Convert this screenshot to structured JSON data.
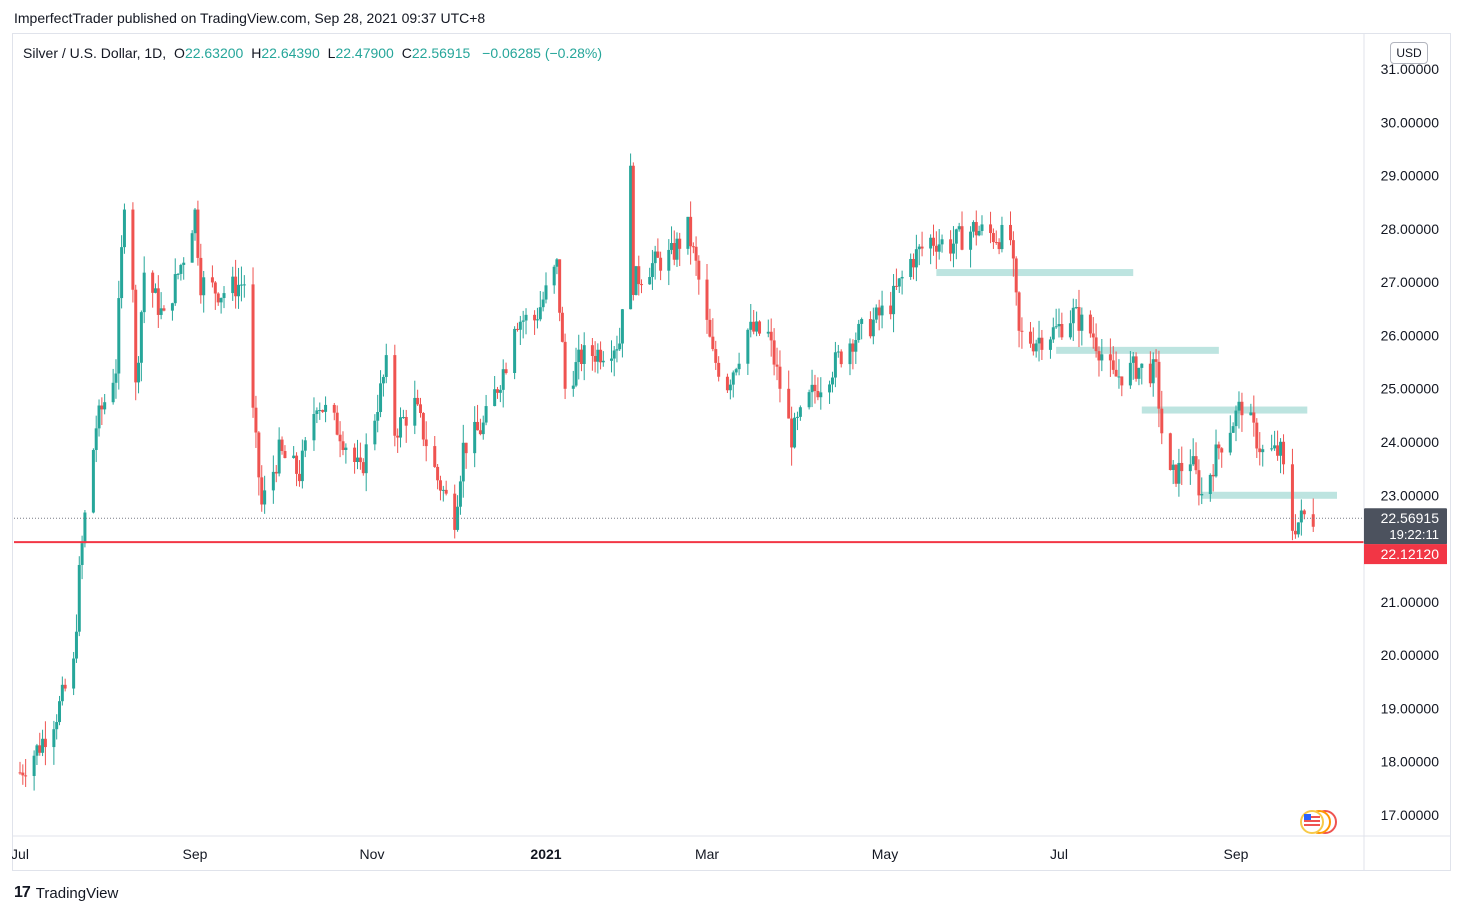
{
  "header": {
    "published_by": "ImperfectTrader published on TradingView.com, Sep 28, 2021 09:37 UTC+8"
  },
  "legend": {
    "symbol": "Silver / U.S. Dollar, 1D,",
    "open_label": "O",
    "open": "22.63200",
    "high_label": "H",
    "high": "22.64390",
    "low_label": "L",
    "low": "22.47900",
    "close_label": "C",
    "close": "22.56915",
    "change": "−0.06285 (−0.28%)"
  },
  "currency": "USD",
  "footer": {
    "brand": "TradingView",
    "logo_text": "17"
  },
  "colors": {
    "up": "#26a69a",
    "down": "#ef5350",
    "support_line": "#f23645",
    "zone": "#b2dfdb",
    "price_tag": "#4c525e",
    "grid_text": "#131722"
  },
  "chart_data": {
    "type": "candlestick",
    "title": "Silver / U.S. Dollar, 1D",
    "x_ticks": [
      "Jul",
      "Sep",
      "Nov",
      "2021",
      "Mar",
      "May",
      "Jul",
      "Sep"
    ],
    "y_ticks": [
      "31.00000",
      "30.00000",
      "29.00000",
      "28.00000",
      "27.00000",
      "26.00000",
      "25.00000",
      "24.00000",
      "23.00000",
      "21.00000",
      "20.00000",
      "19.00000",
      "18.00000",
      "17.00000"
    ],
    "ylim": [
      16.6,
      31.4
    ],
    "current_price": "22.56915",
    "countdown": "19:22:11",
    "support_level": "22.12120",
    "support_value": 22.1212,
    "current_value": 22.56915,
    "zones": [
      {
        "from": "2021-05-19",
        "to": "2021-07-27",
        "price": 27.18
      },
      {
        "from": "2021-06-30",
        "to": "2021-08-26",
        "price": 25.72
      },
      {
        "from": "2021-07-30",
        "to": "2021-09-25",
        "price": 24.6
      },
      {
        "from": "2021-08-20",
        "to": "2021-10-20",
        "price": 23.0
      }
    ],
    "series_anchor_points": [
      [
        "2020-07-01",
        17.8
      ],
      [
        "2020-07-08",
        18.3
      ],
      [
        "2020-07-14",
        18.9
      ],
      [
        "2020-07-20",
        19.8
      ],
      [
        "2020-07-22",
        21.5
      ],
      [
        "2020-07-24",
        22.6
      ],
      [
        "2020-07-28",
        24.3
      ],
      [
        "2020-08-04",
        25.4
      ],
      [
        "2020-08-07",
        28.6
      ],
      [
        "2020-08-10",
        27.0
      ],
      [
        "2020-08-11",
        25.0
      ],
      [
        "2020-08-14",
        27.2
      ],
      [
        "2020-08-21",
        26.3
      ],
      [
        "2020-08-28",
        27.5
      ],
      [
        "2020-09-01",
        28.3
      ],
      [
        "2020-09-03",
        27.0
      ],
      [
        "2020-09-10",
        26.8
      ],
      [
        "2020-09-18",
        27.0
      ],
      [
        "2020-09-21",
        24.5
      ],
      [
        "2020-09-24",
        22.8
      ],
      [
        "2020-09-30",
        23.8
      ],
      [
        "2020-10-07",
        23.4
      ],
      [
        "2020-10-13",
        24.8
      ],
      [
        "2020-10-21",
        24.2
      ],
      [
        "2020-10-28",
        23.4
      ],
      [
        "2020-11-06",
        25.4
      ],
      [
        "2020-11-09",
        24.2
      ],
      [
        "2020-11-16",
        24.7
      ],
      [
        "2020-11-24",
        23.3
      ],
      [
        "2020-11-30",
        22.6
      ],
      [
        "2020-12-03",
        23.9
      ],
      [
        "2020-12-10",
        24.3
      ],
      [
        "2020-12-18",
        25.5
      ],
      [
        "2020-12-21",
        26.3
      ],
      [
        "2020-12-28",
        26.3
      ],
      [
        "2021-01-05",
        27.3
      ],
      [
        "2021-01-08",
        25.0
      ],
      [
        "2021-01-14",
        25.6
      ],
      [
        "2021-01-21",
        25.7
      ],
      [
        "2021-01-28",
        25.9
      ],
      [
        "2021-02-01",
        29.0
      ],
      [
        "2021-02-02",
        27.0
      ],
      [
        "2021-02-08",
        27.3
      ],
      [
        "2021-02-16",
        27.5
      ],
      [
        "2021-02-22",
        28.0
      ],
      [
        "2021-02-25",
        27.3
      ],
      [
        "2021-03-03",
        25.6
      ],
      [
        "2021-03-08",
        25.1
      ],
      [
        "2021-03-15",
        26.1
      ],
      [
        "2021-03-22",
        26.0
      ],
      [
        "2021-03-30",
        24.1
      ],
      [
        "2021-04-06",
        24.9
      ],
      [
        "2021-04-13",
        25.4
      ],
      [
        "2021-04-19",
        25.9
      ],
      [
        "2021-04-26",
        26.2
      ],
      [
        "2021-05-03",
        26.6
      ],
      [
        "2021-05-10",
        27.4
      ],
      [
        "2021-05-17",
        27.8
      ],
      [
        "2021-05-24",
        27.7
      ],
      [
        "2021-06-01",
        28.0
      ],
      [
        "2021-06-07",
        27.9
      ],
      [
        "2021-06-14",
        27.8
      ],
      [
        "2021-06-17",
        26.0
      ],
      [
        "2021-06-22",
        25.9
      ],
      [
        "2021-06-30",
        26.1
      ],
      [
        "2021-07-06",
        26.4
      ],
      [
        "2021-07-13",
        26.0
      ],
      [
        "2021-07-20",
        25.2
      ],
      [
        "2021-07-28",
        25.4
      ],
      [
        "2021-08-04",
        25.3
      ],
      [
        "2021-08-06",
        24.2
      ],
      [
        "2021-08-09",
        23.3
      ],
      [
        "2021-08-16",
        23.7
      ],
      [
        "2021-08-20",
        23.0
      ],
      [
        "2021-08-26",
        23.9
      ],
      [
        "2021-09-03",
        24.7
      ],
      [
        "2021-09-10",
        23.8
      ],
      [
        "2021-09-16",
        23.8
      ],
      [
        "2021-09-20",
        22.4
      ],
      [
        "2021-09-24",
        22.6
      ],
      [
        "2021-09-27",
        22.56915
      ]
    ]
  }
}
